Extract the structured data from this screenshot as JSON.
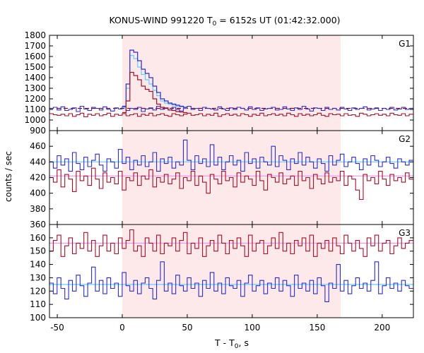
{
  "chart_data": {
    "type": "line",
    "title": "KONUS-WIND 991220 T",
    "title_sub": "0",
    "title_rest": " = 6152s UT (01:42:32.000)",
    "xlabel": "T - T",
    "xlabel_sub": "0",
    "xlabel_rest": ", s",
    "ylabel": "counts / sec",
    "xlim": [
      -56,
      224
    ],
    "xticks": [
      -50,
      0,
      50,
      100,
      150,
      200
    ],
    "xtick_labels": [
      "-50",
      "0",
      "50",
      "100",
      "150",
      "200"
    ],
    "highlight_interval": [
      0,
      168
    ],
    "colors": {
      "blue": "#2d2dbf",
      "red": "#a0102a",
      "cyan": "#66ccff",
      "pink": "#ee99ee",
      "highlight": "#fde8ea",
      "darkred": "#8b0020"
    },
    "panels": [
      {
        "label": "G1",
        "ylim": [
          900,
          1800
        ],
        "yticks": [
          900,
          1000,
          1100,
          1200,
          1300,
          1400,
          1500,
          1600,
          1700,
          1800
        ],
        "ytick_labels": [
          "900",
          "1000",
          "1100",
          "1200",
          "1300",
          "1400",
          "1500",
          "1600",
          "1700",
          "1800"
        ],
        "background": {
          "color": "darkred",
          "value": 1110
        },
        "series": [
          {
            "color": "blue",
            "x_start": -56,
            "bin": 2.944,
            "values": [
              1110,
              1120,
              1095,
              1125,
              1090,
              1100,
              1115,
              1080,
              1130,
              1105,
              1090,
              1120,
              1110,
              1095,
              1125,
              1100,
              1085,
              1115,
              1105,
              1125,
              1090,
              1110,
              1100,
              1120,
              1080,
              1105,
              1115,
              1095,
              1130,
              1100,
              1115,
              1095,
              1120,
              1100,
              1085,
              1115,
              1130,
              1100,
              1110,
              1090,
              1120,
              1110,
              1105,
              1095,
              1125,
              1105,
              1090,
              1115,
              1100,
              1120,
              1110,
              1095,
              1125,
              1100,
              1115,
              1090,
              1105,
              1110,
              1120,
              1095,
              1100,
              1125,
              1105,
              1090,
              1115,
              1100,
              1130,
              1105,
              1085,
              1115,
              1110,
              1090,
              1120,
              1100,
              1110,
              1095,
              1120,
              1105,
              1090,
              1115,
              1100,
              1110,
              1125,
              1095,
              1105,
              1115,
              1090,
              1110,
              1100,
              1120,
              1095,
              1105,
              1120,
              1100,
              1110
            ]
          },
          {
            "color": "red",
            "x_start": -56,
            "bin": 2.944,
            "values": [
              1060,
              1050,
              1045,
              1055,
              1040,
              1060,
              1035,
              1050,
              1065,
              1030,
              1055,
              1045,
              1060,
              1040,
              1050,
              1065,
              1035,
              1055,
              1045,
              1060,
              1040,
              1050,
              1060,
              1035,
              1055,
              1045,
              1065,
              1040,
              1050,
              1060,
              1045,
              1035,
              1060,
              1050,
              1040,
              1055,
              1065,
              1045,
              1050,
              1060,
              1040,
              1055,
              1045,
              1065,
              1035,
              1050,
              1060,
              1045,
              1055,
              1040,
              1060,
              1050,
              1035,
              1055,
              1045,
              1065,
              1040,
              1050,
              1060,
              1045,
              1055,
              1040,
              1065,
              1050,
              1035,
              1060,
              1045,
              1055,
              1040,
              1050,
              1065,
              1045,
              1035,
              1060,
              1050,
              1055,
              1040,
              1060,
              1045,
              1050,
              1035,
              1065,
              1055,
              1040,
              1050,
              1060,
              1045,
              1055,
              1040,
              1065,
              1050,
              1045,
              1060,
              1040,
              1055
            ]
          }
        ],
        "pulse": {
          "blue": {
            "x_start": 0,
            "bin": 2.944,
            "values": [
              1130,
              1340,
              1660,
              1640,
              1560,
              1480,
              1440,
              1400,
              1320,
              1260,
              1200,
              1180,
              1160,
              1150,
              1140,
              1130,
              1120
            ]
          },
          "cyan": {
            "x_start": 0,
            "bin": 2.944,
            "values": [
              1120,
              1300,
              1610,
              1580,
              1500,
              1430,
              1380,
              1340,
              1280,
              1230,
              1180,
              1160,
              1150,
              1140,
              1130,
              1125,
              1115
            ]
          },
          "red": {
            "x_start": 0,
            "bin": 2.944,
            "values": [
              1070,
              1180,
              1450,
              1420,
              1380,
              1320,
              1290,
              1270,
              1200,
              1150,
              1120,
              1110,
              1095,
              1090,
              1080,
              1075,
              1070
            ]
          }
        }
      },
      {
        "label": "G2",
        "ylim": [
          360,
          480
        ],
        "yticks": [
          360,
          380,
          400,
          420,
          440,
          460
        ],
        "ytick_labels": [
          "360",
          "380",
          "400",
          "420",
          "440",
          "460"
        ],
        "fits": [
          {
            "color": "cyan",
            "value": 440
          },
          {
            "color": "pink",
            "value": 422
          }
        ],
        "series": [
          {
            "color": "blue",
            "x_start": -56,
            "bin": 2.944,
            "values": [
              440,
              432,
              448,
              436,
              444,
              428,
              452,
              438,
              430,
              446,
              434,
              442,
              450,
              436,
              428,
              444,
              440,
              432,
              456,
              438,
              446,
              430,
              442,
              436,
              448,
              434,
              440,
              452,
              428,
              444,
              438,
              446,
              432,
              440,
              436,
              468,
              442,
              430,
              448,
              438,
              444,
              434,
              462,
              436,
              446,
              430,
              440,
              448,
              436,
              442,
              428,
              452,
              438,
              444,
              432,
              446,
              440,
              436,
              460,
              434,
              448,
              442,
              430,
              444,
              438,
              452,
              436,
              446,
              440,
              432,
              444,
              438,
              428,
              448,
              436,
              442,
              450,
              434,
              440,
              446,
              438,
              430,
              444,
              436,
              448,
              442,
              434,
              440,
              446,
              438,
              432,
              444,
              440,
              436,
              442
            ]
          },
          {
            "color": "red",
            "x_start": -56,
            "bin": 2.944,
            "values": [
              420,
              414,
              430,
              408,
              424,
              418,
              402,
              428,
              416,
              422,
              410,
              432,
              418,
              406,
              426,
              414,
              420,
              412,
              428,
              404,
              420,
              416,
              426,
              410,
              422,
              418,
              430,
              408,
              420,
              414,
              424,
              412,
              418,
              426,
              406,
              420,
              416,
              428,
              410,
              422,
              414,
              400,
              424,
              418,
              412,
              428,
              416,
              420,
              408,
              426,
              414,
              422,
              418,
              410,
              428,
              416,
              404,
              424,
              420,
              414,
              426,
              412,
              418,
              422,
              410,
              428,
              416,
              420,
              406,
              424,
              418,
              412,
              426,
              414,
              420,
              416,
              428,
              410,
              422,
              418,
              404,
              392,
              424,
              416,
              420,
              412,
              428,
              418,
              410,
              424,
              416,
              420,
              414,
              426,
              418
            ]
          }
        ]
      },
      {
        "label": "G3",
        "ylim": [
          100,
          170
        ],
        "yticks": [
          100,
          110,
          120,
          130,
          140,
          150,
          160
        ],
        "ytick_labels": [
          "100",
          "110",
          "120",
          "130",
          "140",
          "150",
          "160"
        ],
        "fits": [
          {
            "color": "pink",
            "value": 156
          },
          {
            "color": "cyan",
            "value": 125
          }
        ],
        "series": [
          {
            "color": "red",
            "x_start": -56,
            "bin": 2.944,
            "values": [
              150,
              158,
              162,
              146,
              154,
              160,
              148,
              156,
              152,
              164,
              150,
              158,
              146,
              154,
              162,
              150,
              156,
              148,
              160,
              152,
              158,
              166,
              150,
              154,
              146,
              160,
              156,
              150,
              162,
              148,
              156,
              154,
              160,
              150,
              158,
              164,
              148,
              156,
              152,
              160,
              146,
              154,
              158,
              150,
              162,
              156,
              148,
              158,
              152,
              160,
              154,
              146,
              162,
              150,
              156,
              158,
              148,
              154,
              160,
              152,
              164,
              150,
              156,
              148,
              158,
              154,
              160,
              150,
              162,
              146,
              156,
              152,
              158,
              150,
              160,
              154,
              148,
              162,
              156,
              150,
              158,
              152,
              146,
              160,
              154,
              162,
              150,
              156,
              158,
              148,
              154,
              160,
              152,
              156,
              158
            ]
          },
          {
            "color": "blue",
            "x_start": -56,
            "bin": 2.944,
            "values": [
              126,
              118,
              130,
              122,
              114,
              128,
              120,
              132,
              124,
              116,
              126,
              138,
              120,
              128,
              118,
              130,
              122,
              126,
              116,
              134,
              124,
              120,
              128,
              118,
              126,
              130,
              122,
              114,
              128,
              142,
              120,
              126,
              118,
              132,
              124,
              120,
              130,
              122,
              126,
              116,
              128,
              122,
              134,
              120,
              126,
              118,
              130,
              124,
              122,
              128,
              116,
              126,
              132,
              120,
              124,
              128,
              118,
              126,
              122,
              130,
              120,
              128,
              124,
              116,
              132,
              122,
              126,
              120,
              128,
              118,
              130,
              124,
              112,
              126,
              122,
              140,
              120,
              128,
              118,
              124,
              130,
              122,
              126,
              120,
              128,
              142,
              118,
              124,
              130,
              122,
              126,
              120,
              128,
              124,
              122
            ]
          }
        ]
      }
    ]
  }
}
